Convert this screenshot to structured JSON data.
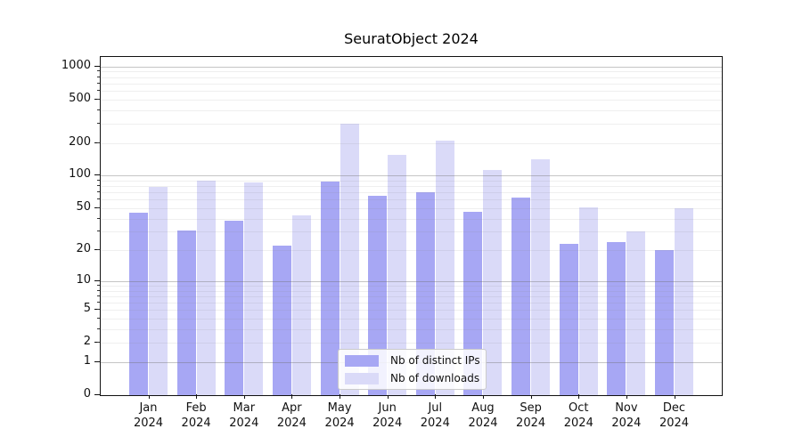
{
  "title": "SeuratObject 2024",
  "legend": {
    "items": [
      {
        "label": "Nb of distinct IPs",
        "color": "#a7a7f4"
      },
      {
        "label": "Nb of downloads",
        "color": "#dadaf8"
      }
    ]
  },
  "chart_data": {
    "type": "bar",
    "title": "SeuratObject 2024",
    "categories": [
      "Jan 2024",
      "Feb 2024",
      "Mar 2024",
      "Apr 2024",
      "May 2024",
      "Jun 2024",
      "Jul 2024",
      "Aug 2024",
      "Sep 2024",
      "Oct 2024",
      "Nov 2024",
      "Dec 2024"
    ],
    "series": [
      {
        "name": "Nb of distinct IPs",
        "color": "#a7a7f4",
        "values": [
          45,
          31,
          38,
          22,
          88,
          65,
          70,
          46,
          62,
          23,
          24,
          20
        ]
      },
      {
        "name": "Nb of downloads",
        "color": "#dadaf8",
        "values": [
          78,
          90,
          87,
          43,
          300,
          155,
          210,
          113,
          140,
          51,
          30,
          50
        ]
      }
    ],
    "xlabel": "",
    "ylabel": "",
    "yscale": "log1p",
    "yticks": [
      0,
      1,
      2,
      5,
      10,
      20,
      50,
      100,
      200,
      500,
      1000
    ],
    "ylim": [
      0,
      1220
    ],
    "grid": true,
    "grid_on_top": true,
    "legend_position": "lower center"
  },
  "colors": {
    "distinct_ips_bar": "#a7a7f4",
    "downloads_bar": "#dadaf8",
    "spine": "#111111",
    "background": "#ffffff"
  }
}
